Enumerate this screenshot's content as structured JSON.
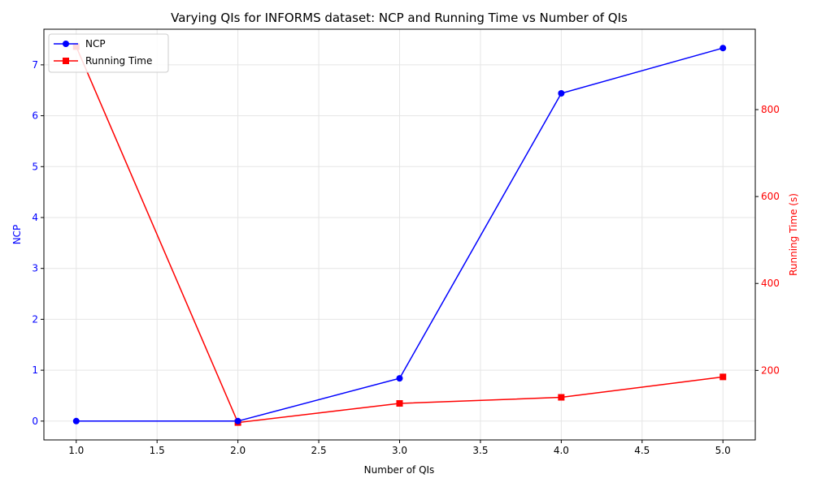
{
  "chart_data": {
    "type": "line",
    "title": "Varying QIs for INFORMS dataset: NCP and Running Time vs Number of QIs",
    "xlabel": "Number of QIs",
    "ylabel_left": "NCP",
    "ylabel_right": "Running Time (s)",
    "x": [
      1.0,
      2.0,
      3.0,
      4.0,
      5.0
    ],
    "xlim": [
      0.8,
      5.2
    ],
    "ylim_left": [
      -0.37,
      7.7
    ],
    "ylim_right": [
      40,
      985
    ],
    "x_ticks": [
      "1.0",
      "1.5",
      "2.0",
      "2.5",
      "3.0",
      "3.5",
      "4.0",
      "4.5",
      "5.0"
    ],
    "y_ticks_left": [
      "0",
      "1",
      "2",
      "3",
      "4",
      "5",
      "6",
      "7"
    ],
    "y_ticks_right": [
      "200",
      "400",
      "600",
      "800"
    ],
    "grid": true,
    "legend_position": "upper-left",
    "series": [
      {
        "name": "NCP",
        "axis": "left",
        "color": "#0000ff",
        "marker": "circle",
        "values": [
          0.0,
          0.0,
          0.84,
          6.44,
          7.33
        ]
      },
      {
        "name": "Running Time",
        "axis": "right",
        "color": "#ff0000",
        "marker": "square",
        "values": [
          945,
          80,
          124,
          138,
          185
        ]
      }
    ],
    "colors": {
      "left_axis": "#0000ff",
      "right_axis": "#ff0000",
      "grid": "#e5e5e5"
    }
  }
}
